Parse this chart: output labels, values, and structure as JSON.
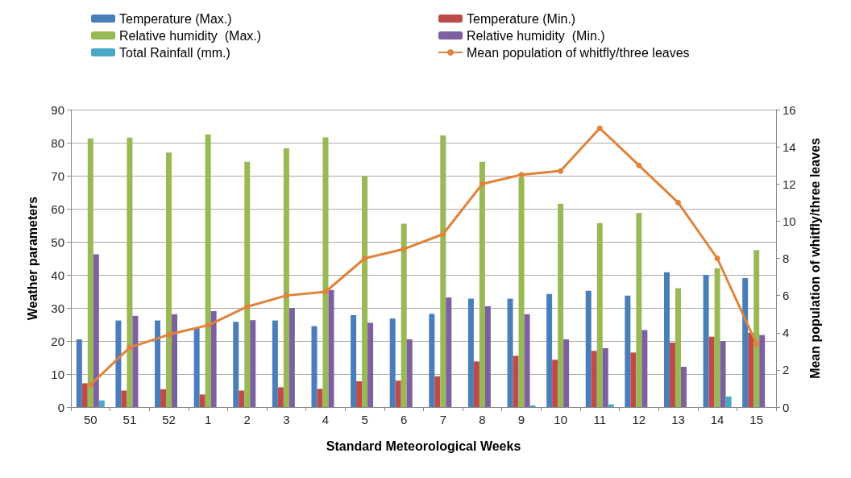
{
  "chart_data": {
    "type": "bar",
    "categories": [
      "50",
      "51",
      "52",
      "1",
      "2",
      "3",
      "4",
      "5",
      "6",
      "7",
      "8",
      "9",
      "10",
      "11",
      "12",
      "13",
      "14",
      "15"
    ],
    "xlabel": "Standard Meteorological Weeks",
    "ylabel": "Weather parameters",
    "y2label": "Mean population of whitfly/three leaves",
    "ylim": [
      0,
      90
    ],
    "yticks": [
      0,
      10,
      20,
      30,
      40,
      50,
      60,
      70,
      80,
      90
    ],
    "y2lim": [
      0,
      16
    ],
    "y2ticks": [
      0,
      2,
      4,
      6,
      8,
      10,
      12,
      14,
      16
    ],
    "grid": "y",
    "legend": "top",
    "series": [
      {
        "name": "Temperature (Max.)",
        "color": "#4a7ebb",
        "values": [
          20.5,
          26.2,
          26.2,
          24,
          25.8,
          26.2,
          24.5,
          27.8,
          26.8,
          28.2,
          32.8,
          32.8,
          34.2,
          35.2,
          33.7,
          40.8,
          40,
          39
        ]
      },
      {
        "name": "Temperature (Min.)",
        "color": "#be4b48",
        "values": [
          7.2,
          5,
          5.4,
          3.8,
          5,
          6,
          5.5,
          7.8,
          8,
          9.3,
          13.8,
          15.5,
          14.3,
          17,
          16.5,
          19.5,
          21.3,
          22.5
        ]
      },
      {
        "name": "Relative humidity  (Max.)",
        "color": "#98b954",
        "values": [
          81.3,
          81.5,
          77,
          82.5,
          74.2,
          78.3,
          81.6,
          69.8,
          55.5,
          82.2,
          74.2,
          69.6,
          61.5,
          55.7,
          58.7,
          36,
          42,
          47.5
        ]
      },
      {
        "name": "Relative humidity  (Min.)",
        "color": "#7d60a0",
        "values": [
          46.2,
          27.6,
          28.1,
          29,
          26.3,
          30,
          35.4,
          25.5,
          20.5,
          33.2,
          30.5,
          28.1,
          20.5,
          17.8,
          23.3,
          12.2,
          20,
          21.8
        ]
      },
      {
        "name": "Total Rainfall (mm.)",
        "color": "#46aac5",
        "values": [
          2,
          0,
          0,
          0,
          0,
          0,
          0,
          0,
          0,
          0,
          0,
          0.5,
          0,
          0.8,
          0,
          0,
          3.2,
          0
        ]
      },
      {
        "name": "Mean population of whitfly/three leaves",
        "type": "line",
        "axis": "y2",
        "marker": "circle",
        "color": "#e0833a",
        "values": [
          1.2,
          3.2,
          3.9,
          4.4,
          5.4,
          6,
          6.2,
          8,
          8.5,
          9.3,
          12,
          12.5,
          12.7,
          15,
          13,
          11,
          8,
          3.4
        ]
      }
    ]
  }
}
